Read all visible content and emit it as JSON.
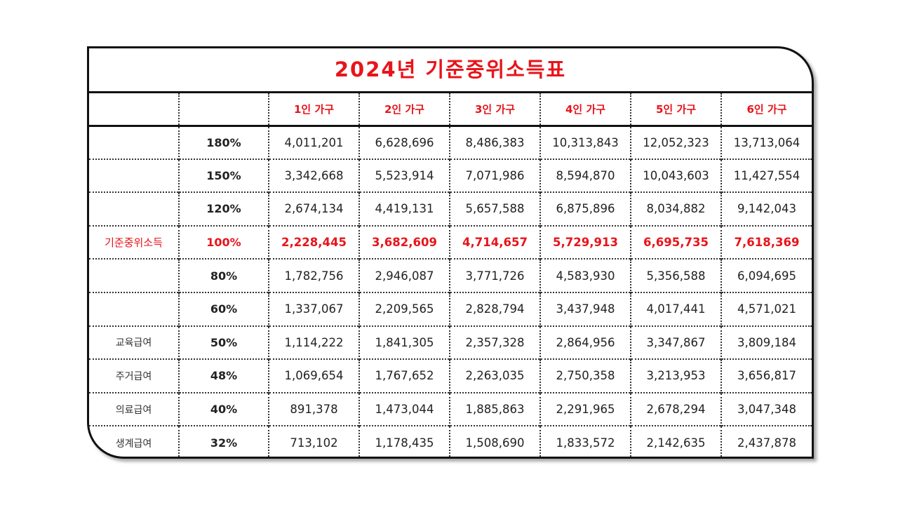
{
  "title": "2024년 기준중위소득표",
  "accent_color": "#e8141a",
  "header": [
    "",
    "",
    "1인 가구",
    "2인 가구",
    "3인 가구",
    "4인 가구",
    "5인 가구",
    "6인 가구"
  ],
  "rows": [
    {
      "label": "",
      "pct": "180%",
      "values": [
        "4,011,201",
        "6,628,696",
        "8,486,383",
        "10,313,843",
        "12,052,323",
        "13,713,064"
      ]
    },
    {
      "label": "",
      "pct": "150%",
      "values": [
        "3,342,668",
        "5,523,914",
        "7,071,986",
        "8,594,870",
        "10,043,603",
        "11,427,554"
      ]
    },
    {
      "label": "",
      "pct": "120%",
      "values": [
        "2,674,134",
        "4,419,131",
        "5,657,588",
        "6,875,896",
        "8,034,882",
        "9,142,043"
      ]
    },
    {
      "label": "기준중위소득",
      "pct": "100%",
      "values": [
        "2,228,445",
        "3,682,609",
        "4,714,657",
        "5,729,913",
        "6,695,735",
        "7,618,369"
      ]
    },
    {
      "label": "",
      "pct": "80%",
      "values": [
        "1,782,756",
        "2,946,087",
        "3,771,726",
        "4,583,930",
        "5,356,588",
        "6,094,695"
      ]
    },
    {
      "label": "",
      "pct": "60%",
      "values": [
        "1,337,067",
        "2,209,565",
        "2,828,794",
        "3,437,948",
        "4,017,441",
        "4,571,021"
      ]
    },
    {
      "label": "교육급여",
      "pct": "50%",
      "values": [
        "1,114,222",
        "1,841,305",
        "2,357,328",
        "2,864,956",
        "3,347,867",
        "3,809,184"
      ]
    },
    {
      "label": "주거급여",
      "pct": "48%",
      "values": [
        "1,069,654",
        "1,767,652",
        "2,263,035",
        "2,750,358",
        "3,213,953",
        "3,656,817"
      ]
    },
    {
      "label": "의료급여",
      "pct": "40%",
      "values": [
        "891,378",
        "1,473,044",
        "1,885,863",
        "2,291,965",
        "2,678,294",
        "3,047,348"
      ]
    },
    {
      "label": "생계급여",
      "pct": "32%",
      "values": [
        "713,102",
        "1,178,435",
        "1,508,690",
        "1,833,572",
        "2,142,635",
        "2,437,878"
      ]
    }
  ]
}
